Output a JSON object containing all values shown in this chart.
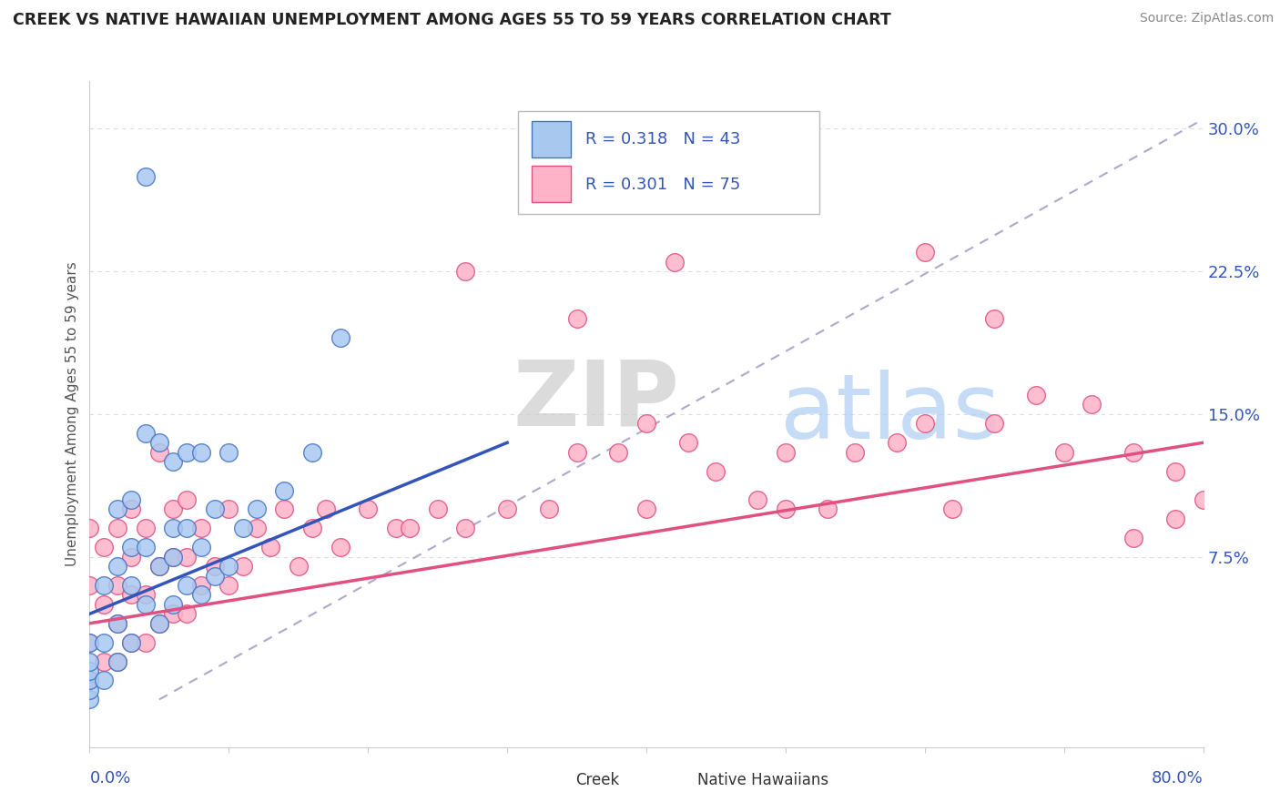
{
  "title": "CREEK VS NATIVE HAWAIIAN UNEMPLOYMENT AMONG AGES 55 TO 59 YEARS CORRELATION CHART",
  "source": "Source: ZipAtlas.com",
  "ylabel": "Unemployment Among Ages 55 to 59 years",
  "ytick_labels": [
    "",
    "7.5%",
    "15.0%",
    "22.5%",
    "30.0%"
  ],
  "ytick_values": [
    0.0,
    0.075,
    0.15,
    0.225,
    0.3
  ],
  "xlim": [
    0.0,
    0.8
  ],
  "ylim": [
    -0.025,
    0.325
  ],
  "creek_color": "#A8C8F0",
  "creek_edge_color": "#4472C4",
  "nh_color": "#FFB3C8",
  "nh_edge_color": "#E05080",
  "creek_R": 0.318,
  "creek_N": 43,
  "nh_R": 0.301,
  "nh_N": 75,
  "legend_color": "#3355BB",
  "background_color": "#FFFFFF",
  "grid_color": "#DDDDDD",
  "creek_line_color": "#3355BB",
  "nh_line_color": "#E05080",
  "dash_line_color": "#AAAACC",
  "creek_line": [
    0.0,
    0.3,
    0.045,
    0.135
  ],
  "nh_line": [
    0.0,
    0.8,
    0.04,
    0.135
  ],
  "dash_line": [
    0.05,
    0.8,
    0.0,
    0.305
  ],
  "creek_x": [
    0.0,
    0.0,
    0.0,
    0.0,
    0.0,
    0.0,
    0.01,
    0.01,
    0.01,
    0.02,
    0.02,
    0.02,
    0.02,
    0.03,
    0.03,
    0.03,
    0.03,
    0.04,
    0.04,
    0.04,
    0.05,
    0.05,
    0.05,
    0.06,
    0.06,
    0.06,
    0.06,
    0.07,
    0.07,
    0.07,
    0.08,
    0.08,
    0.08,
    0.09,
    0.09,
    0.1,
    0.1,
    0.11,
    0.12,
    0.14,
    0.16,
    0.04,
    0.18
  ],
  "creek_y": [
    0.0,
    0.005,
    0.01,
    0.015,
    0.02,
    0.03,
    0.01,
    0.03,
    0.06,
    0.02,
    0.04,
    0.07,
    0.1,
    0.03,
    0.06,
    0.08,
    0.105,
    0.05,
    0.08,
    0.14,
    0.04,
    0.07,
    0.135,
    0.05,
    0.075,
    0.09,
    0.125,
    0.06,
    0.09,
    0.13,
    0.055,
    0.08,
    0.13,
    0.065,
    0.1,
    0.07,
    0.13,
    0.09,
    0.1,
    0.11,
    0.13,
    0.275,
    0.19
  ],
  "nh_x": [
    0.0,
    0.0,
    0.0,
    0.0,
    0.01,
    0.01,
    0.01,
    0.02,
    0.02,
    0.02,
    0.02,
    0.03,
    0.03,
    0.03,
    0.03,
    0.04,
    0.04,
    0.04,
    0.05,
    0.05,
    0.05,
    0.06,
    0.06,
    0.06,
    0.07,
    0.07,
    0.07,
    0.08,
    0.08,
    0.09,
    0.1,
    0.1,
    0.11,
    0.12,
    0.13,
    0.14,
    0.15,
    0.16,
    0.17,
    0.18,
    0.2,
    0.22,
    0.23,
    0.25,
    0.27,
    0.3,
    0.33,
    0.35,
    0.38,
    0.4,
    0.4,
    0.43,
    0.45,
    0.48,
    0.5,
    0.5,
    0.53,
    0.55,
    0.58,
    0.6,
    0.62,
    0.65,
    0.65,
    0.68,
    0.7,
    0.72,
    0.75,
    0.75,
    0.78,
    0.78,
    0.8,
    0.6,
    0.42,
    0.35,
    0.27
  ],
  "nh_y": [
    0.01,
    0.03,
    0.06,
    0.09,
    0.02,
    0.05,
    0.08,
    0.02,
    0.04,
    0.06,
    0.09,
    0.03,
    0.055,
    0.075,
    0.1,
    0.03,
    0.055,
    0.09,
    0.04,
    0.07,
    0.13,
    0.045,
    0.075,
    0.1,
    0.045,
    0.075,
    0.105,
    0.06,
    0.09,
    0.07,
    0.06,
    0.1,
    0.07,
    0.09,
    0.08,
    0.1,
    0.07,
    0.09,
    0.1,
    0.08,
    0.1,
    0.09,
    0.09,
    0.1,
    0.09,
    0.1,
    0.1,
    0.13,
    0.13,
    0.1,
    0.145,
    0.135,
    0.12,
    0.105,
    0.1,
    0.13,
    0.1,
    0.13,
    0.135,
    0.145,
    0.1,
    0.145,
    0.2,
    0.16,
    0.13,
    0.155,
    0.085,
    0.13,
    0.095,
    0.12,
    0.105,
    0.235,
    0.23,
    0.2,
    0.225
  ]
}
